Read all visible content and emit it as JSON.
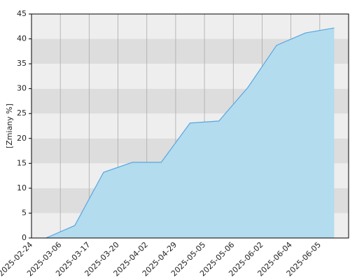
{
  "chart_data": {
    "type": "area",
    "y_label": "[Zmiany %]",
    "categories": [
      "2025-02-24",
      "2025-03-06",
      "2025-03-17",
      "2025-03-20",
      "2025-04-02",
      "2025-04-29",
      "2025-05-05",
      "2025-05-06",
      "2025-06-02",
      "2025-06-04",
      "2025-06-05"
    ],
    "values": [
      0,
      2.5,
      13.2,
      15.2,
      15.2,
      23.1,
      23.5,
      30.2,
      38.7,
      41.2,
      42.2
    ],
    "color": "#5aa6e0",
    "fill_color": "#b3dcee",
    "ylim": [
      0,
      45
    ],
    "yticks": [
      0,
      5,
      10,
      15,
      20,
      25,
      30,
      35,
      40,
      45
    ],
    "grid": true
  }
}
